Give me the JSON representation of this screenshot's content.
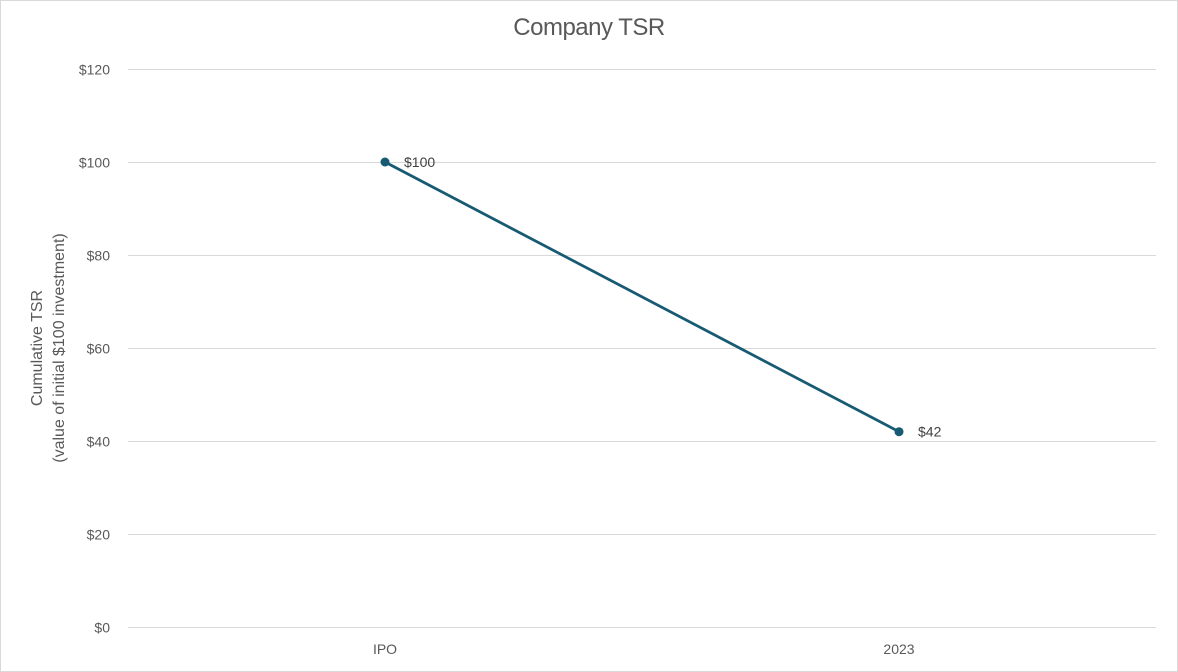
{
  "chart_data": {
    "type": "line",
    "title": "Company TSR",
    "categories": [
      "IPO",
      "2023"
    ],
    "series": [
      {
        "values": [
          100,
          42
        ],
        "data_labels": [
          "$100",
          "$42"
        ],
        "color": "#175a73"
      }
    ],
    "ylabel_line1": "Cumulative TSR",
    "ylabel_line2": "(value of initial $100 investment)",
    "xlabel": "",
    "ylim": [
      0,
      120
    ],
    "y_ticks": [
      0,
      20,
      40,
      60,
      80,
      100,
      120
    ],
    "y_tick_labels": [
      "$0",
      "$20",
      "$40",
      "$60",
      "$80",
      "$100",
      "$120"
    ],
    "grid": true,
    "legend": "none",
    "gridline_color": "#d9d9d9"
  }
}
